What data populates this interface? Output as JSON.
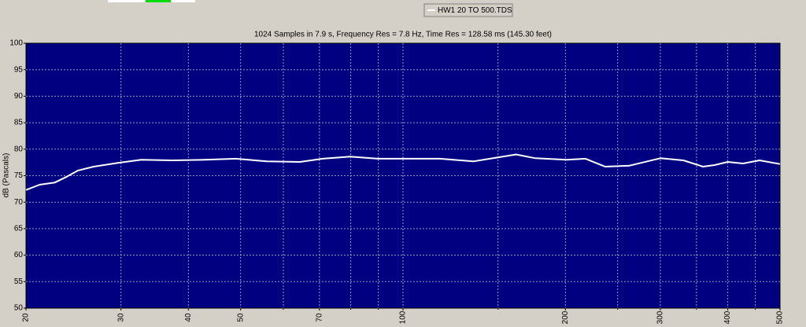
{
  "chart_data": {
    "type": "line",
    "title": "1024 Samples in 7.9 s, Frequency Res = 7.8 Hz, Time Res = 128.58 ms (145.30 feet)",
    "y_label": "dB (Pascals)",
    "x_scale": "log",
    "x": [
      20,
      21.2,
      22.6,
      23.8,
      25.0,
      26.7,
      29.6,
      32.7,
      37.4,
      42.9,
      49.0,
      55.9,
      64.4,
      71.0,
      79.8,
      89.8,
      102,
      117,
      135,
      162,
      176,
      201,
      218,
      237,
      263,
      300,
      331,
      360,
      378,
      400,
      427,
      458,
      500
    ],
    "series": [
      {
        "name": "HW1 20 TO 500.TDS",
        "color": "#ffffff",
        "values": [
          72.3,
          73.3,
          73.7,
          74.8,
          76.0,
          76.7,
          77.4,
          78.0,
          77.9,
          78.0,
          78.2,
          77.7,
          77.6,
          78.2,
          78.6,
          78.2,
          78.2,
          78.2,
          77.7,
          79.0,
          78.3,
          78.0,
          78.2,
          76.7,
          76.9,
          78.3,
          77.9,
          76.7,
          77.0,
          77.6,
          77.3,
          77.9,
          77.2
        ]
      }
    ],
    "xlim": [
      20,
      500
    ],
    "ylim": [
      50,
      100
    ],
    "xticks": [
      20,
      30,
      40,
      50,
      70,
      100,
      200,
      300,
      400,
      500
    ],
    "x_minor_ticks": [
      60,
      80,
      90,
      150,
      250,
      350,
      450
    ],
    "yticks": [
      50,
      55,
      60,
      65,
      70,
      75,
      80,
      85,
      90,
      95,
      100
    ],
    "grid": true,
    "plot_background": "#000080"
  }
}
